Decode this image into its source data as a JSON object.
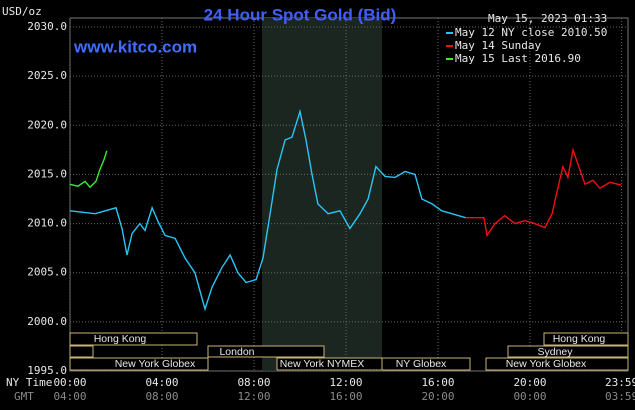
{
  "chart_data": {
    "type": "line",
    "title": "24 Hour Spot Gold (Bid)",
    "site": "www.kitco.com",
    "timestamp": "May 15, 2023 01:33",
    "y_label": "USD/oz",
    "x_label": "NY Time",
    "x2_label": "GMT",
    "ylim": [
      1995,
      2030
    ],
    "yticks": [
      {
        "value": 1995,
        "label": "1995.0"
      },
      {
        "value": 2000,
        "label": "2000.0"
      },
      {
        "value": 2005,
        "label": "2005.0"
      },
      {
        "value": 2010,
        "label": "2010.0"
      },
      {
        "value": 2015,
        "label": "2015.0"
      },
      {
        "value": 2020,
        "label": "2020.0"
      },
      {
        "value": 2025,
        "label": "2025.0"
      },
      {
        "value": 2030,
        "label": "2030.0"
      }
    ],
    "xlim": [
      0,
      24
    ],
    "xticks": [
      {
        "value": 0,
        "label": "00:00"
      },
      {
        "value": 4,
        "label": "04:00"
      },
      {
        "value": 8,
        "label": "08:00"
      },
      {
        "value": 12,
        "label": "12:00"
      },
      {
        "value": 16,
        "label": "16:00"
      },
      {
        "value": 20,
        "label": "20:00"
      },
      {
        "value": 23.9833,
        "label": "23:59"
      }
    ],
    "x2_labels": [
      "04:00",
      "08:00",
      "12:00",
      "16:00",
      "20:00",
      "00:00",
      "03:59"
    ],
    "grid": true,
    "sessions": [
      "Hong Kong",
      "London",
      "New York Globex",
      "New York NYMEX",
      "NY Globex",
      "Hong Kong",
      "Sydney",
      "New York Globex"
    ],
    "series": [
      {
        "name": "May 12 NY close 2010.50",
        "color": "#29c5f6",
        "x": [
          0,
          1.09,
          2.0,
          2.26,
          2.48,
          2.7,
          3.04,
          3.26,
          3.57,
          3.83,
          4.13,
          4.57,
          5.0,
          5.43,
          5.87,
          6.17,
          6.6,
          6.96,
          7.3,
          7.65,
          8.09,
          8.39,
          8.7,
          9.0,
          9.35,
          9.65,
          10.0,
          10.26,
          10.52,
          10.78,
          11.22,
          11.74,
          12.17,
          12.61,
          12.96,
          13.3,
          13.7,
          14.13,
          14.57,
          15.0,
          15.3,
          15.74,
          16.17,
          16.6,
          17.2
        ],
        "values": [
          2011.3,
          2011.0,
          2011.6,
          2009.5,
          2006.8,
          2009.0,
          2010.0,
          2009.3,
          2011.6,
          2010.2,
          2008.8,
          2008.5,
          2006.5,
          2005.0,
          2001.3,
          2003.5,
          2005.5,
          2006.8,
          2005.0,
          2004.0,
          2004.3,
          2006.5,
          2011.0,
          2015.5,
          2018.5,
          2018.8,
          2021.4,
          2018.5,
          2015.0,
          2012.0,
          2011.0,
          2011.3,
          2009.5,
          2011.0,
          2012.5,
          2015.8,
          2014.8,
          2014.7,
          2015.3,
          2015.0,
          2012.5,
          2012.0,
          2011.3,
          2011.0,
          2010.6
        ]
      },
      {
        "name": "May 14 Sunday",
        "color": "#ee1111",
        "x": [
          17.2,
          18.0,
          18.13,
          18.48,
          18.9,
          19.35,
          19.78,
          20.2,
          20.65,
          20.96,
          21.2,
          21.43,
          21.65,
          21.87,
          22.09,
          22.39,
          22.74,
          23.04,
          23.48,
          23.98
        ],
        "values": [
          2010.6,
          2010.6,
          2008.8,
          2010.0,
          2010.8,
          2010.0,
          2010.3,
          2010.0,
          2009.6,
          2011.0,
          2013.5,
          2015.8,
          2014.7,
          2017.5,
          2016.0,
          2014.0,
          2014.4,
          2013.6,
          2014.2,
          2013.9
        ]
      },
      {
        "name": "May 15 Last 2016.90",
        "color": "#33ee33",
        "x": [
          0,
          0.35,
          0.65,
          0.87,
          1.13,
          1.3,
          1.48,
          1.6
        ],
        "values": [
          2014.0,
          2013.8,
          2014.3,
          2013.7,
          2014.3,
          2015.5,
          2016.5,
          2017.4
        ]
      }
    ]
  }
}
